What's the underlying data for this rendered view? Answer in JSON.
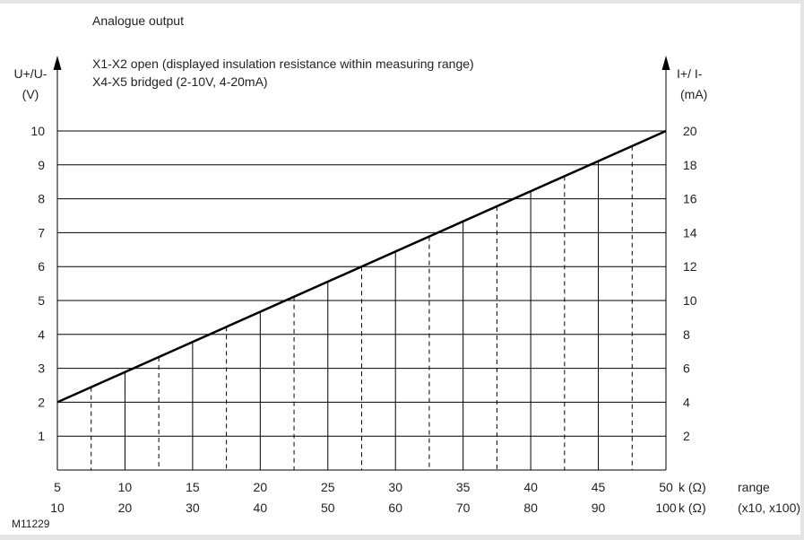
{
  "chart_data": {
    "type": "line",
    "title": "Analogue output",
    "notes": [
      "X1-X2  open (displayed insulation resistance within measuring range)",
      "X4-X5  bridged (2-10V, 4-20mA)"
    ],
    "figure_id": "M11229",
    "y_left": {
      "label_line1": "U+/U-",
      "label_line2": "(V)",
      "ylim": [
        0,
        10
      ],
      "ticks": [
        "1",
        "2",
        "3",
        "4",
        "5",
        "6",
        "7",
        "8",
        "9",
        "10"
      ]
    },
    "y_right": {
      "label_line1": "I+/ I-",
      "label_line2": "(mA)",
      "ylim": [
        0,
        20
      ],
      "ticks": [
        "2",
        "4",
        "6",
        "8",
        "10",
        "12",
        "14",
        "16",
        "18",
        "20"
      ]
    },
    "x_axes": [
      {
        "ticks": [
          "5",
          "10",
          "15",
          "20",
          "25",
          "30",
          "35",
          "40",
          "45",
          "50"
        ],
        "unit_label": "k (Ω)",
        "suffix": "range"
      },
      {
        "ticks": [
          "10",
          "20",
          "30",
          "40",
          "50",
          "60",
          "70",
          "80",
          "90",
          "100"
        ],
        "unit_label": "k (Ω)",
        "suffix": "(x10, x100)"
      }
    ],
    "xlim": [
      5,
      50
    ],
    "grid": true,
    "series": [
      {
        "x": [
          5,
          50
        ],
        "y": [
          2,
          10
        ]
      }
    ],
    "solid_verticals_x": [
      10,
      15,
      20,
      25,
      30,
      35,
      40,
      45
    ],
    "dashed_verticals_x": [
      7.5,
      12.5,
      17.5,
      22.5,
      27.5,
      32.5,
      37.5,
      42.5,
      47.5
    ]
  }
}
